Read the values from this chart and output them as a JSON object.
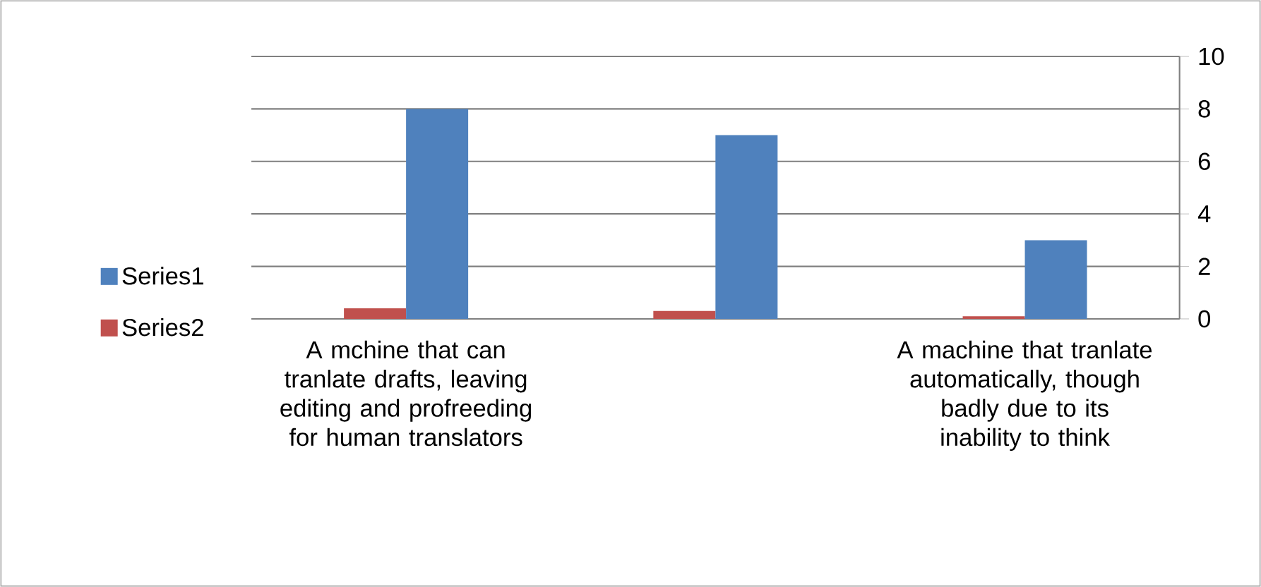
{
  "chart_data": {
    "type": "bar",
    "categories": [
      "A mchine that can tranlate drafts, leaving editing and profreeding for human translators",
      null,
      "A machine that tranlate automatically, though badly due to its inability to think"
    ],
    "series": [
      {
        "name": "Series1",
        "color": "#4f81bd",
        "values": [
          8,
          7,
          3
        ]
      },
      {
        "name": "Series2",
        "color": "#c0504d",
        "values": [
          0.4,
          0.3,
          0.1
        ]
      }
    ],
    "ylim": [
      0,
      10
    ],
    "yticks": [
      0,
      2,
      4,
      6,
      8,
      10
    ],
    "grid": "y",
    "legend": "left"
  }
}
